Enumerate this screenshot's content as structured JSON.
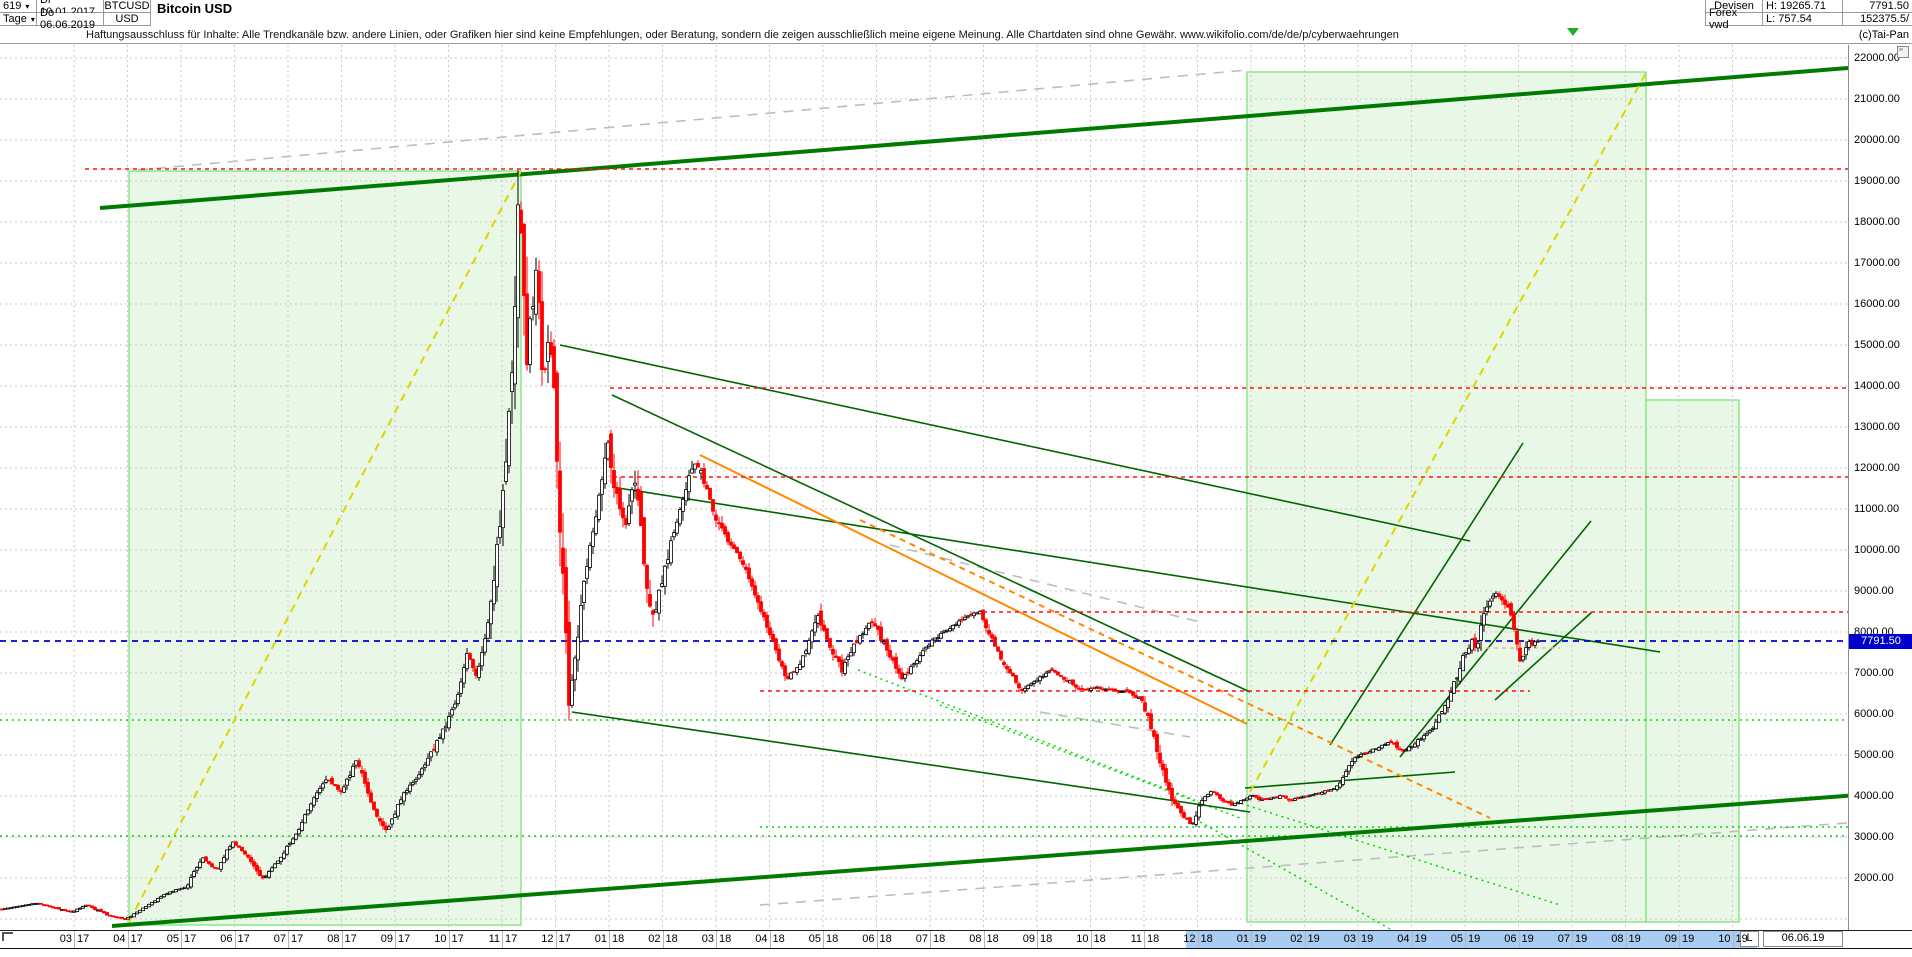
{
  "header": {
    "periods_value": "619",
    "timeframe": "Tage",
    "date_from": "Di 10.01.2017",
    "date_to": "Do 06.06.2019",
    "symbol": "BTCUSD",
    "currency": "USD",
    "title": "Bitcoin USD",
    "market": "Devisen",
    "source": "Forex vwd",
    "high_label": "H: 19265.71",
    "low_label": "L: 757.54",
    "last_price": "7791.50",
    "volume": "152375.5/"
  },
  "disclaimer": "Haftungsausschluss für Inhalte: Alle Trendkanäle bzw. andere Linien, oder Grafiken hier sind keine Empfehlungen, oder Beratung, sondern die zeigen ausschließlich meine eigene Meinung. Alle Chartdaten sind ohne Gewähr.  www.wikifolio.com/de/de/p/cyberwaehrungen",
  "copyright": "(c)Tai-Pan",
  "price_tag": "7791.50",
  "bottom_bar": {
    "l_button": "L",
    "date_box": "06.06.19"
  },
  "axis": {
    "y_ticks": [
      "22000.00",
      "21000.00",
      "20000.00",
      "19000.00",
      "18000.00",
      "17000.00",
      "16000.00",
      "15000.00",
      "14000.00",
      "13000.00",
      "12000.00",
      "11000.00",
      "10000.00",
      "9000.00",
      "8000.00",
      "7000.00",
      "6000.00",
      "5000.00",
      "4000.00",
      "3000.00",
      "2000.00"
    ],
    "x_labels": [
      {
        "m": "03",
        "y": "17"
      },
      {
        "m": "04",
        "y": "17"
      },
      {
        "m": "05",
        "y": "17"
      },
      {
        "m": "06",
        "y": "17"
      },
      {
        "m": "07",
        "y": "17"
      },
      {
        "m": "08",
        "y": "17"
      },
      {
        "m": "09",
        "y": "17"
      },
      {
        "m": "10",
        "y": "17"
      },
      {
        "m": "11",
        "y": "17"
      },
      {
        "m": "12",
        "y": "17"
      },
      {
        "m": "01",
        "y": "18"
      },
      {
        "m": "02",
        "y": "18"
      },
      {
        "m": "03",
        "y": "18"
      },
      {
        "m": "04",
        "y": "18"
      },
      {
        "m": "05",
        "y": "18"
      },
      {
        "m": "06",
        "y": "18"
      },
      {
        "m": "07",
        "y": "18"
      },
      {
        "m": "08",
        "y": "18"
      },
      {
        "m": "09",
        "y": "18"
      },
      {
        "m": "10",
        "y": "18"
      },
      {
        "m": "11",
        "y": "18"
      },
      {
        "m": "12",
        "y": "18"
      },
      {
        "m": "01",
        "y": "19"
      },
      {
        "m": "02",
        "y": "19"
      },
      {
        "m": "03",
        "y": "19"
      },
      {
        "m": "04",
        "y": "19"
      },
      {
        "m": "05",
        "y": "19"
      },
      {
        "m": "06",
        "y": "19"
      },
      {
        "m": "07",
        "y": "19"
      },
      {
        "m": "08",
        "y": "19"
      },
      {
        "m": "09",
        "y": "19"
      },
      {
        "m": "10",
        "y": "19"
      }
    ],
    "highlight_from_index": 21,
    "highlight_to_index": 31
  },
  "colors": {
    "channel_fill": "#e9f7e6",
    "channel_border": "#7be37b",
    "trend_thick_green": "#007a00",
    "trend_thin_green": "#006400",
    "yellow_dash": "#d8d800",
    "orange": "#ff8800",
    "red_dash": "#ff1111",
    "pink_dash": "#ffaaaa",
    "lime_dot": "#00d800",
    "gray_dash": "#bdbdbd",
    "grid": "#c9c9c9",
    "blue_current": "#0000cc",
    "candle_up": "#000000",
    "candle_down": "#ff0000",
    "tag_bg": "#0000cc",
    "axis_highlight": "#a9cdf2"
  },
  "chart_data": {
    "type": "candlestick",
    "title": "Bitcoin USD",
    "symbol": "BTCUSD",
    "timeframe": "daily (Tage)",
    "period_shown": "10.01.2017 - 06.06.2019",
    "high": 19265.71,
    "low": 757.54,
    "last": 7791.5,
    "volume_info": "152375.5/",
    "ylim_visible": [
      750,
      22300
    ],
    "grid_step": 1000,
    "x_months": [
      "03.17",
      "04.17",
      "05.17",
      "06.17",
      "07.17",
      "08.17",
      "09.17",
      "10.17",
      "11.17",
      "12.17",
      "01.18",
      "02.18",
      "03.18",
      "04.18",
      "05.18",
      "06.18",
      "07.18",
      "08.18",
      "09.18",
      "10.18",
      "11.18",
      "12.18",
      "01.19",
      "02.19",
      "03.19",
      "04.19",
      "05.19",
      "06.19",
      "07.19",
      "08.19",
      "09.19",
      "10.19"
    ],
    "legend_position": "none",
    "grid": true,
    "levels": {
      "all_time_high_line": 19265.7,
      "resistance_13950": 13950,
      "resistance_11780": 11780,
      "resistance_8490": 8490,
      "resistance_6560": 6560,
      "current_price_line": 7791.5,
      "support_5850": 5850,
      "support_3240": 3240,
      "support_3020": 3020
    },
    "keypoints_x_price": [
      [
        2,
        1230
      ],
      [
        40,
        1390
      ],
      [
        74,
        1170
      ],
      [
        90,
        1340
      ],
      [
        110,
        1100
      ],
      [
        129,
        1000
      ],
      [
        150,
        1340
      ],
      [
        170,
        1630
      ],
      [
        190,
        1800
      ],
      [
        205,
        2490
      ],
      [
        220,
        2200
      ],
      [
        235,
        2900
      ],
      [
        250,
        2560
      ],
      [
        265,
        1950
      ],
      [
        280,
        2390
      ],
      [
        300,
        3100
      ],
      [
        315,
        3900
      ],
      [
        330,
        4410
      ],
      [
        345,
        4100
      ],
      [
        360,
        4900
      ],
      [
        375,
        3760
      ],
      [
        390,
        3100
      ],
      [
        405,
        4020
      ],
      [
        420,
        4410
      ],
      [
        435,
        5070
      ],
      [
        450,
        5800
      ],
      [
        460,
        6340
      ],
      [
        470,
        7510
      ],
      [
        480,
        6930
      ],
      [
        490,
        8050
      ],
      [
        497,
        9390
      ],
      [
        505,
        11000
      ],
      [
        512,
        13170
      ],
      [
        518,
        16100
      ],
      [
        522,
        18780
      ],
      [
        526,
        16580
      ],
      [
        530,
        14880
      ],
      [
        535,
        15850
      ],
      [
        540,
        17100
      ],
      [
        546,
        13900
      ],
      [
        552,
        15370
      ],
      [
        558,
        13410
      ],
      [
        565,
        9760
      ],
      [
        572,
        6220
      ],
      [
        580,
        7800
      ],
      [
        590,
        9760
      ],
      [
        600,
        10980
      ],
      [
        610,
        12680
      ],
      [
        618,
        11460
      ],
      [
        628,
        10490
      ],
      [
        638,
        11710
      ],
      [
        648,
        9510
      ],
      [
        656,
        8290
      ],
      [
        665,
        9270
      ],
      [
        675,
        10240
      ],
      [
        685,
        11220
      ],
      [
        695,
        11950
      ],
      [
        700,
        12120
      ],
      [
        710,
        11460
      ],
      [
        720,
        10730
      ],
      [
        730,
        10240
      ],
      [
        745,
        9760
      ],
      [
        760,
        8780
      ],
      [
        775,
        7800
      ],
      [
        790,
        6830
      ],
      [
        805,
        7320
      ],
      [
        820,
        8410
      ],
      [
        830,
        7800
      ],
      [
        845,
        7070
      ],
      [
        860,
        7800
      ],
      [
        875,
        8290
      ],
      [
        890,
        7560
      ],
      [
        905,
        6830
      ],
      [
        920,
        7320
      ],
      [
        935,
        7800
      ],
      [
        950,
        8050
      ],
      [
        965,
        8290
      ],
      [
        975,
        8440
      ],
      [
        983,
        8490
      ],
      [
        995,
        7800
      ],
      [
        1010,
        7120
      ],
      [
        1025,
        6580
      ],
      [
        1040,
        6830
      ],
      [
        1055,
        7070
      ],
      [
        1070,
        6830
      ],
      [
        1085,
        6580
      ],
      [
        1100,
        6630
      ],
      [
        1115,
        6580
      ],
      [
        1130,
        6540
      ],
      [
        1145,
        6340
      ],
      [
        1155,
        5610
      ],
      [
        1165,
        4630
      ],
      [
        1175,
        3900
      ],
      [
        1185,
        3540
      ],
      [
        1195,
        3290
      ],
      [
        1205,
        3900
      ],
      [
        1215,
        4150
      ],
      [
        1225,
        3900
      ],
      [
        1235,
        3780
      ],
      [
        1245,
        3900
      ],
      [
        1255,
        4020
      ],
      [
        1265,
        3900
      ],
      [
        1275,
        3950
      ],
      [
        1285,
        4020
      ],
      [
        1295,
        3900
      ],
      [
        1305,
        3980
      ],
      [
        1315,
        4020
      ],
      [
        1325,
        4100
      ],
      [
        1335,
        4150
      ],
      [
        1345,
        4390
      ],
      [
        1355,
        4880
      ],
      [
        1365,
        5000
      ],
      [
        1375,
        5120
      ],
      [
        1385,
        5240
      ],
      [
        1395,
        5320
      ],
      [
        1405,
        5070
      ],
      [
        1415,
        5240
      ],
      [
        1425,
        5410
      ],
      [
        1435,
        5610
      ],
      [
        1445,
        6100
      ],
      [
        1455,
        6590
      ],
      [
        1465,
        7320
      ],
      [
        1475,
        7800
      ],
      [
        1480,
        7560
      ],
      [
        1485,
        8290
      ],
      [
        1492,
        8660
      ],
      [
        1498,
        8980
      ],
      [
        1505,
        8780
      ],
      [
        1512,
        8540
      ],
      [
        1518,
        8050
      ],
      [
        1524,
        7200
      ],
      [
        1530,
        7800
      ],
      [
        1535,
        7680
      ],
      [
        1540,
        7791.5
      ]
    ],
    "annotations": [
      "long-term rising channel (thick dark green top and bottom lines)",
      "two pale green channel boxes with yellow dashed diagonals",
      "red dashed horizontal resistance lines",
      "lime dotted horizontal support lines",
      "orange downtrend line from 2018 highs",
      "gray dashed parallel channel lines",
      "blue dashed current price line at 7791.50"
    ]
  }
}
